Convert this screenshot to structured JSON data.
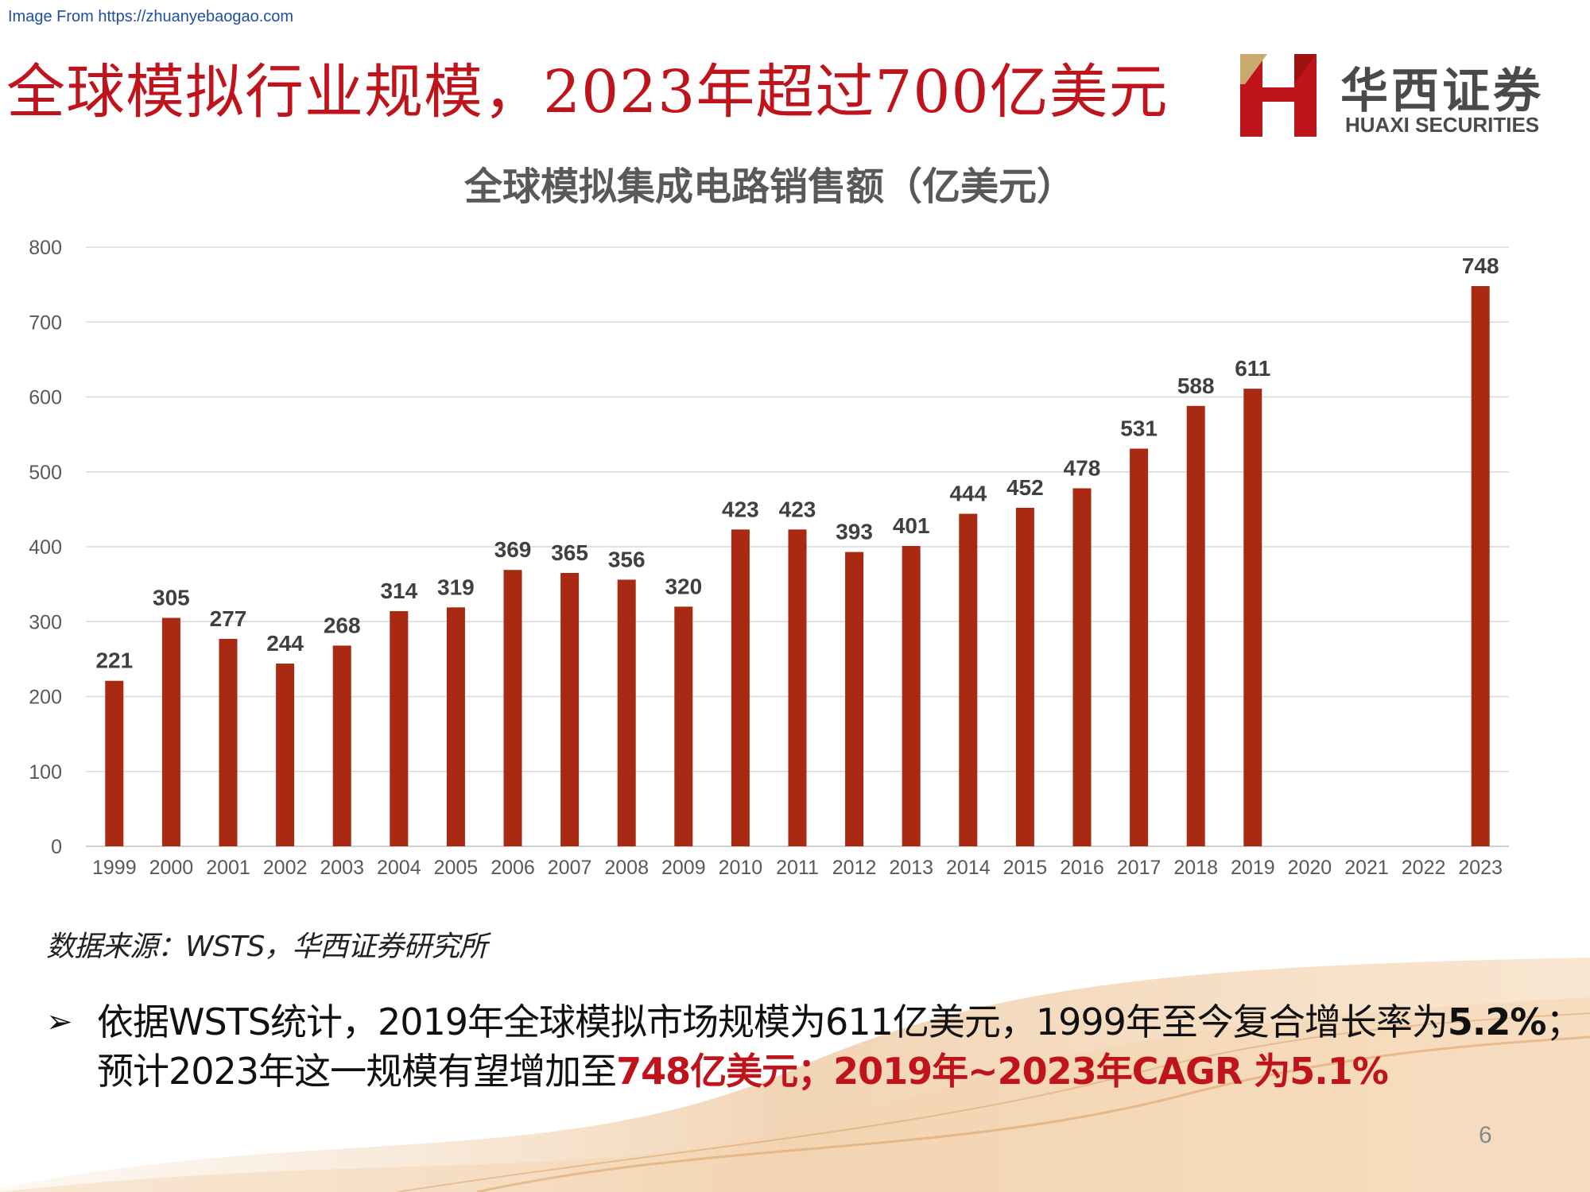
{
  "source_link": "Image From https://zhuanyebaogao.com",
  "headline": "全球模拟行业规模，2023年超过700亿美元",
  "logo": {
    "cn": "华西证券",
    "en": "HUAXI SECURITIES",
    "icon": "huaxi-h-logo-icon"
  },
  "colors": {
    "bar": "#a82a12",
    "headline": "#c0141c",
    "grid": "#d9d9d9",
    "axis_text": "#595959"
  },
  "chart_data": {
    "type": "bar",
    "title": "全球模拟集成电路销售额（亿美元）",
    "categories": [
      "1999",
      "2000",
      "2001",
      "2002",
      "2003",
      "2004",
      "2005",
      "2006",
      "2007",
      "2008",
      "2009",
      "2010",
      "2011",
      "2012",
      "2013",
      "2014",
      "2015",
      "2016",
      "2017",
      "2018",
      "2019",
      "2020",
      "2021",
      "2022",
      "2023"
    ],
    "values": [
      221,
      305,
      277,
      244,
      268,
      314,
      319,
      369,
      365,
      356,
      320,
      423,
      423,
      393,
      401,
      444,
      452,
      478,
      531,
      588,
      611,
      null,
      null,
      null,
      748
    ],
    "ylim": [
      0,
      800
    ],
    "yticks": [
      0,
      100,
      200,
      300,
      400,
      500,
      600,
      700,
      800
    ],
    "grid": true,
    "legend": "none",
    "data_labels": true
  },
  "source_note": "数据来源：WSTS，华西证券研究所",
  "bullet": {
    "icon": "arrow-bullet-icon",
    "arrow": "➢",
    "part1": "依据WSTS统计，2019年全球模拟市场规模为611亿美元，1999年至今复合增长率为",
    "part2": "5.2%",
    "part3": "；预计2023年这一规模有望增加至",
    "part4": "748亿美元；2019年~2023年CAGR 为5.1%"
  },
  "page_number": "6"
}
